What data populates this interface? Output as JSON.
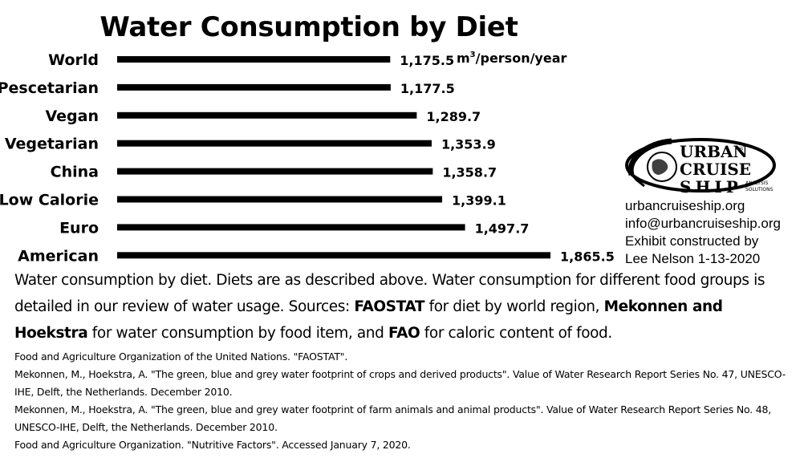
{
  "title": "Water Consumption by Diet",
  "units": {
    "base": "m",
    "sup": "3",
    "rest": "/person/year"
  },
  "chart_data": {
    "type": "bar",
    "orientation": "horizontal",
    "title": "Water Consumption by Diet",
    "categories": [
      "World",
      "Pescetarian",
      "Vegan",
      "Vegetarian",
      "China",
      "Low Calorie",
      "Euro",
      "American"
    ],
    "values": [
      1175.5,
      1177.5,
      1289.7,
      1353.9,
      1358.7,
      1399.1,
      1497.7,
      1865.5
    ],
    "value_labels": [
      "1,175.5",
      "1,177.5",
      "1,289.7",
      "1,353.9",
      "1,358.7",
      "1,399.1",
      "1,497.7",
      "1,865.5"
    ],
    "unit": "m3/person/year",
    "bar_color": "#000000",
    "grid": false,
    "axes_visible": false
  },
  "logo": {
    "line1": "URBAN",
    "line2": "CRUISE",
    "line3": "SHIP",
    "sub1": "ANALYSIS",
    "sub2": "SOLUTIONS",
    "mark_r": "®",
    "mark_c": "©"
  },
  "credits": {
    "site": "urbancruiseship.org",
    "email": "info@urbancruiseship.org",
    "line3": "Exhibit constructed by",
    "line4": "Lee Nelson 1-13-2020"
  },
  "caption": {
    "part1": "Water consumption by diet. Diets are as described above. Water consumption for different food groups is detailed in our review of ",
    "link1": "water usage",
    "part2": ". Sources: ",
    "src1": "FAOSTAT",
    "part3": " for diet by world region, ",
    "src2": "Mekonnen and Hoekstra",
    "part4": " for water consumption by food item, and ",
    "src3": "FAO",
    "part5": " for caloric content of food."
  },
  "references": [
    "Food and Agriculture Organization of the United Nations. \"FAOSTAT\".",
    "Mekonnen, M., Hoekstra, A. \"The green, blue and grey water footprint of crops and derived products\". Value of Water Research Report Series No. 47, UNESCO-IHE, Delft, the Netherlands. December 2010.",
    "Mekonnen, M., Hoekstra, A. \"The green, blue and grey water footprint of farm animals and animal products\". Value of Water Research Report Series No. 48, UNESCO-IHE, Delft, the Netherlands. December 2010.",
    "Food and Agriculture Organization. \"Nutritive Factors\". Accessed January 7, 2020."
  ]
}
